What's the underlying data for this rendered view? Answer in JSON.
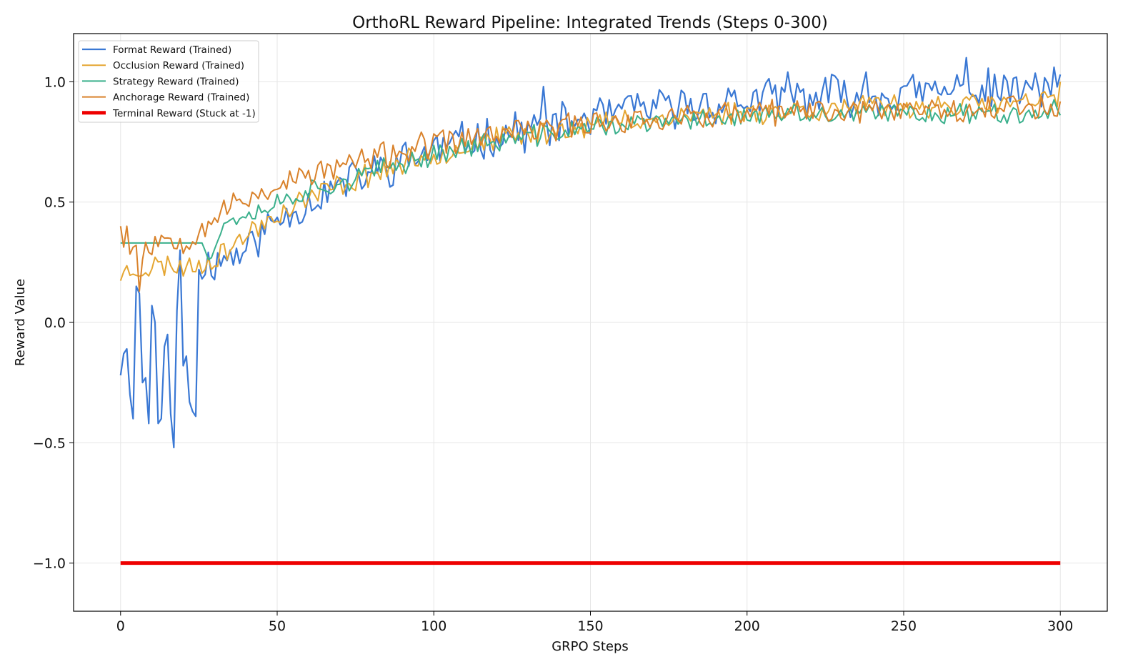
{
  "chart_data": {
    "type": "line",
    "title": "OrthoRL Reward Pipeline: Integrated Trends (Steps 0-300)",
    "xlabel": "GRPO Steps",
    "ylabel": "Reward Value",
    "xlim": [
      -15,
      315
    ],
    "ylim": [
      -1.2,
      1.2
    ],
    "xticks": [
      0,
      50,
      100,
      150,
      200,
      250,
      300
    ],
    "xtick_labels": [
      "0",
      "50",
      "100",
      "150",
      "200",
      "250",
      "300"
    ],
    "yticks": [
      1.0,
      0.5,
      0.0,
      -0.5,
      -1.0
    ],
    "ytick_labels": [
      "1.0",
      "0.5",
      "0.0",
      "−0.5",
      "−1.0"
    ],
    "grid": true,
    "legend_position": "top-left",
    "series": [
      {
        "name": "Format Reward (Trained)",
        "color": "#3a78d4",
        "width": 2.2,
        "anchors": [
          [
            0,
            -0.22
          ],
          [
            1,
            -0.13
          ],
          [
            2,
            -0.11
          ],
          [
            3,
            -0.3
          ],
          [
            4,
            -0.4
          ],
          [
            5,
            0.15
          ],
          [
            6,
            0.12
          ],
          [
            7,
            -0.25
          ],
          [
            8,
            -0.23
          ],
          [
            9,
            -0.42
          ],
          [
            10,
            0.07
          ],
          [
            11,
            0.0
          ],
          [
            12,
            -0.42
          ],
          [
            13,
            -0.4
          ],
          [
            14,
            -0.1
          ],
          [
            15,
            -0.05
          ],
          [
            16,
            -0.38
          ],
          [
            17,
            -0.52
          ],
          [
            18,
            0.05
          ],
          [
            19,
            0.3
          ],
          [
            20,
            -0.18
          ],
          [
            21,
            -0.14
          ],
          [
            22,
            -0.33
          ],
          [
            23,
            -0.37
          ],
          [
            24,
            -0.39
          ],
          [
            25,
            0.22
          ],
          [
            27,
            0.24
          ],
          [
            30,
            0.25
          ],
          [
            35,
            0.28
          ],
          [
            40,
            0.3
          ],
          [
            45,
            0.37
          ],
          [
            50,
            0.43
          ],
          [
            60,
            0.5
          ],
          [
            70,
            0.57
          ],
          [
            80,
            0.62
          ],
          [
            90,
            0.67
          ],
          [
            100,
            0.72
          ],
          [
            110,
            0.75
          ],
          [
            120,
            0.78
          ],
          [
            130,
            0.8
          ],
          [
            140,
            0.82
          ],
          [
            150,
            0.85
          ],
          [
            160,
            0.87
          ],
          [
            175,
            0.89
          ],
          [
            190,
            0.91
          ],
          [
            210,
            0.93
          ],
          [
            230,
            0.94
          ],
          [
            250,
            0.95
          ],
          [
            270,
            0.96
          ],
          [
            300,
            0.97
          ]
        ],
        "noise": 0.075,
        "spikes": [
          [
            135,
            0.98
          ],
          [
            165,
            0.95
          ],
          [
            213,
            1.04
          ],
          [
            227,
            1.03
          ],
          [
            238,
            1.04
          ],
          [
            270,
            1.1
          ],
          [
            298,
            1.06
          ],
          [
            300,
            1.03
          ]
        ],
        "seed": 11
      },
      {
        "name": "Occlusion Reward (Trained)",
        "color": "#e5a632",
        "width": 2.0,
        "anchors": [
          [
            0,
            0.2
          ],
          [
            5,
            0.22
          ],
          [
            10,
            0.23
          ],
          [
            15,
            0.24
          ],
          [
            20,
            0.23
          ],
          [
            25,
            0.24
          ],
          [
            30,
            0.27
          ],
          [
            35,
            0.31
          ],
          [
            40,
            0.36
          ],
          [
            45,
            0.41
          ],
          [
            50,
            0.45
          ],
          [
            60,
            0.52
          ],
          [
            70,
            0.57
          ],
          [
            80,
            0.62
          ],
          [
            90,
            0.66
          ],
          [
            100,
            0.7
          ],
          [
            110,
            0.73
          ],
          [
            120,
            0.76
          ],
          [
            130,
            0.78
          ],
          [
            140,
            0.8
          ],
          [
            150,
            0.82
          ],
          [
            160,
            0.84
          ],
          [
            175,
            0.85
          ],
          [
            190,
            0.87
          ],
          [
            210,
            0.88
          ],
          [
            230,
            0.89
          ],
          [
            250,
            0.9
          ],
          [
            270,
            0.9
          ],
          [
            300,
            0.92
          ]
        ],
        "noise": 0.045,
        "spikes": [
          [
            300,
            1.0
          ]
        ],
        "seed": 23
      },
      {
        "name": "Strategy Reward (Trained)",
        "color": "#3ab08c",
        "width": 2.0,
        "anchors": [
          [
            0,
            0.33
          ],
          [
            26,
            0.33
          ],
          [
            28,
            0.3
          ],
          [
            30,
            0.32
          ],
          [
            33,
            0.4
          ],
          [
            36,
            0.44
          ],
          [
            40,
            0.45
          ],
          [
            45,
            0.47
          ],
          [
            50,
            0.5
          ],
          [
            60,
            0.55
          ],
          [
            70,
            0.58
          ],
          [
            80,
            0.62
          ],
          [
            90,
            0.66
          ],
          [
            100,
            0.7
          ],
          [
            110,
            0.73
          ],
          [
            120,
            0.75
          ],
          [
            130,
            0.77
          ],
          [
            140,
            0.79
          ],
          [
            150,
            0.81
          ],
          [
            160,
            0.82
          ],
          [
            175,
            0.83
          ],
          [
            190,
            0.85
          ],
          [
            210,
            0.86
          ],
          [
            230,
            0.86
          ],
          [
            250,
            0.87
          ],
          [
            270,
            0.87
          ],
          [
            300,
            0.88
          ]
        ],
        "noise": 0.04,
        "flat_until": 26,
        "seed": 37
      },
      {
        "name": "Anchorage Reward (Trained)",
        "color": "#d9822b",
        "width": 2.0,
        "anchors": [
          [
            0,
            0.36
          ],
          [
            5,
            0.3
          ],
          [
            10,
            0.32
          ],
          [
            15,
            0.36
          ],
          [
            20,
            0.34
          ],
          [
            25,
            0.38
          ],
          [
            30,
            0.44
          ],
          [
            35,
            0.48
          ],
          [
            40,
            0.51
          ],
          [
            45,
            0.54
          ],
          [
            50,
            0.57
          ],
          [
            60,
            0.61
          ],
          [
            70,
            0.65
          ],
          [
            80,
            0.68
          ],
          [
            90,
            0.71
          ],
          [
            100,
            0.74
          ],
          [
            110,
            0.76
          ],
          [
            120,
            0.78
          ],
          [
            130,
            0.8
          ],
          [
            140,
            0.81
          ],
          [
            150,
            0.83
          ],
          [
            160,
            0.84
          ],
          [
            175,
            0.85
          ],
          [
            190,
            0.86
          ],
          [
            210,
            0.87
          ],
          [
            230,
            0.88
          ],
          [
            250,
            0.89
          ],
          [
            270,
            0.89
          ],
          [
            300,
            0.9
          ]
        ],
        "noise": 0.05,
        "spikes": [
          [
            6,
            0.13
          ],
          [
            2,
            0.4
          ],
          [
            0,
            0.4
          ]
        ],
        "seed": 53
      },
      {
        "name": "Terminal Reward (Stuck at -1)",
        "color": "#ee0000",
        "width": 5.0,
        "anchors": [
          [
            0,
            -1.0
          ],
          [
            300,
            -1.0
          ]
        ],
        "noise": 0,
        "seed": 1
      }
    ]
  }
}
